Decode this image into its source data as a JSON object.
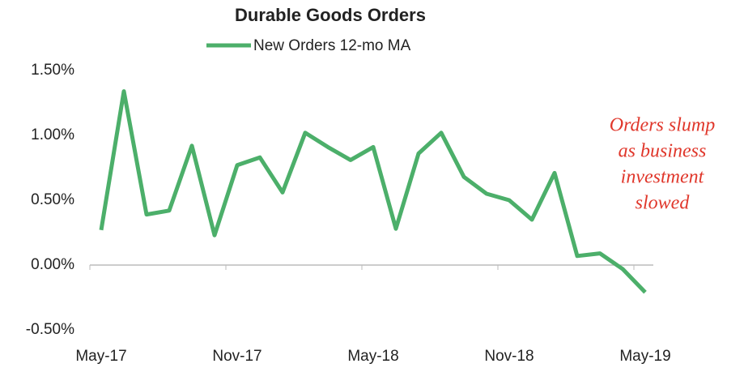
{
  "chart_data": {
    "type": "line",
    "title": "Durable Goods Orders",
    "categories": [
      "May-17",
      null,
      null,
      null,
      null,
      null,
      "Nov-17",
      null,
      null,
      null,
      null,
      null,
      "May-18",
      null,
      null,
      null,
      null,
      null,
      "Nov-18",
      null,
      null,
      null,
      null,
      null,
      "May-19"
    ],
    "series": [
      {
        "name": "New Orders 12-mo MA",
        "color": "#4caf6a",
        "values": [
          0.27,
          1.34,
          0.39,
          0.42,
          0.92,
          0.23,
          0.77,
          0.83,
          0.56,
          1.02,
          0.91,
          0.81,
          0.91,
          0.28,
          0.86,
          1.02,
          0.68,
          0.55,
          0.5,
          0.35,
          0.71,
          0.07,
          0.09,
          -0.03,
          -0.21
        ]
      }
    ],
    "ylim": [
      -0.5,
      1.5
    ],
    "yticks": [
      {
        "value": -0.5,
        "label": "-0.50%"
      },
      {
        "value": 0,
        "label": "0.00%"
      },
      {
        "value": 0.5,
        "label": "0.50%"
      },
      {
        "value": 1,
        "label": "1.00%"
      },
      {
        "value": 1.5,
        "label": "1.50%"
      }
    ],
    "grid": false,
    "annotation": [
      "Orders slump",
      "as business",
      "investment",
      "slowed"
    ],
    "annotation_color": "#e0372b"
  }
}
